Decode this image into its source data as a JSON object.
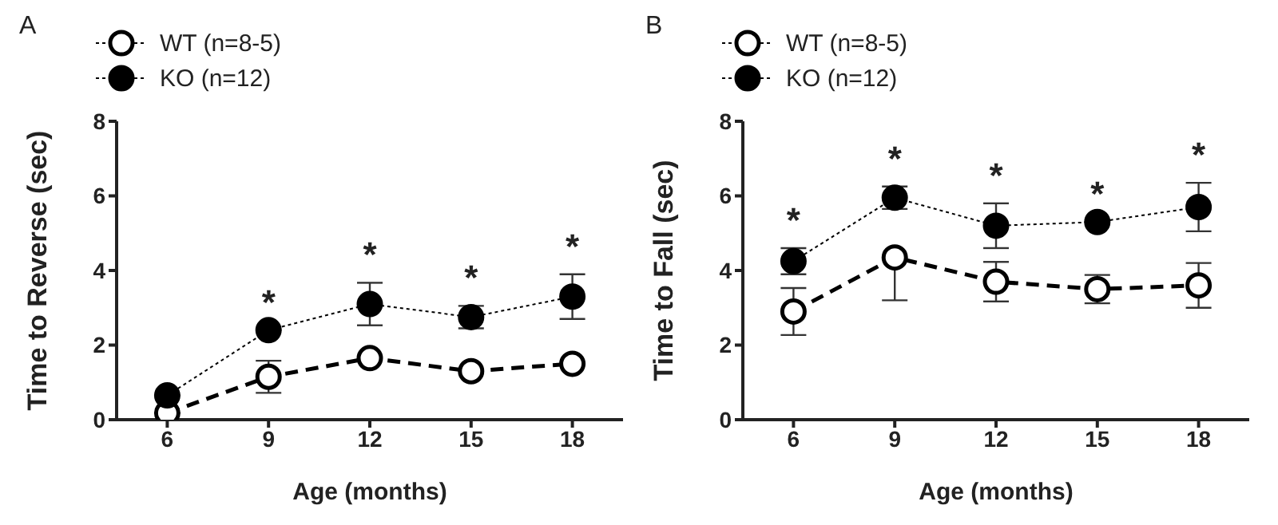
{
  "chart_data": [
    {
      "type": "line",
      "title": "A",
      "xlabel": "Age (months)",
      "ylabel": "Time to Reverse (sec)",
      "x": [
        6,
        9,
        12,
        15,
        18
      ],
      "xlim": [
        4.5,
        19.5
      ],
      "xticks": [
        6,
        9,
        12,
        15,
        18
      ],
      "ylim": [
        0,
        8
      ],
      "yticks": [
        0,
        2,
        4,
        6,
        8
      ],
      "grid": false,
      "legend": "top",
      "marker": "circle",
      "series": [
        {
          "name": "WT (n=8-5)",
          "color": "#000000",
          "line_style": "dashed",
          "values": [
            0.18,
            1.15,
            1.65,
            1.3,
            1.5
          ],
          "errors": [
            null,
            0.43,
            null,
            null,
            null
          ]
        },
        {
          "name": "KO (n=12)",
          "color": "#000000",
          "line_style": "dotted",
          "values": [
            0.65,
            2.4,
            3.1,
            2.75,
            3.3
          ],
          "errors": [
            null,
            null,
            0.57,
            0.3,
            0.6
          ]
        }
      ],
      "annotations": [
        "*",
        "*",
        "*",
        "*"
      ]
    },
    {
      "type": "line",
      "title": "B",
      "xlabel": "Age (months)",
      "ylabel": "Time to Fall (sec)",
      "x": [
        6,
        9,
        12,
        15,
        18
      ],
      "xlim": [
        4.5,
        19.5
      ],
      "xticks": [
        6,
        9,
        12,
        15,
        18
      ],
      "ylim": [
        0,
        8
      ],
      "yticks": [
        0,
        2,
        4,
        6,
        8
      ],
      "grid": false,
      "legend": "top",
      "marker": "circle",
      "series": [
        {
          "name": "WT (n=8-5)",
          "color": "#000000",
          "line_style": "dashed",
          "values": [
            2.9,
            4.35,
            3.7,
            3.5,
            3.6
          ],
          "errors": [
            0.63,
            [
              3.2,
              4.35
            ],
            0.53,
            0.38,
            0.6
          ]
        },
        {
          "name": "KO (n=12)",
          "color": "#000000",
          "line_style": "dotted",
          "values": [
            4.25,
            5.95,
            5.2,
            5.3,
            5.7
          ],
          "errors": [
            0.35,
            0.3,
            0.6,
            null,
            0.65
          ]
        }
      ],
      "annotations": [
        "*",
        "*",
        "*",
        "*",
        "*"
      ]
    }
  ]
}
